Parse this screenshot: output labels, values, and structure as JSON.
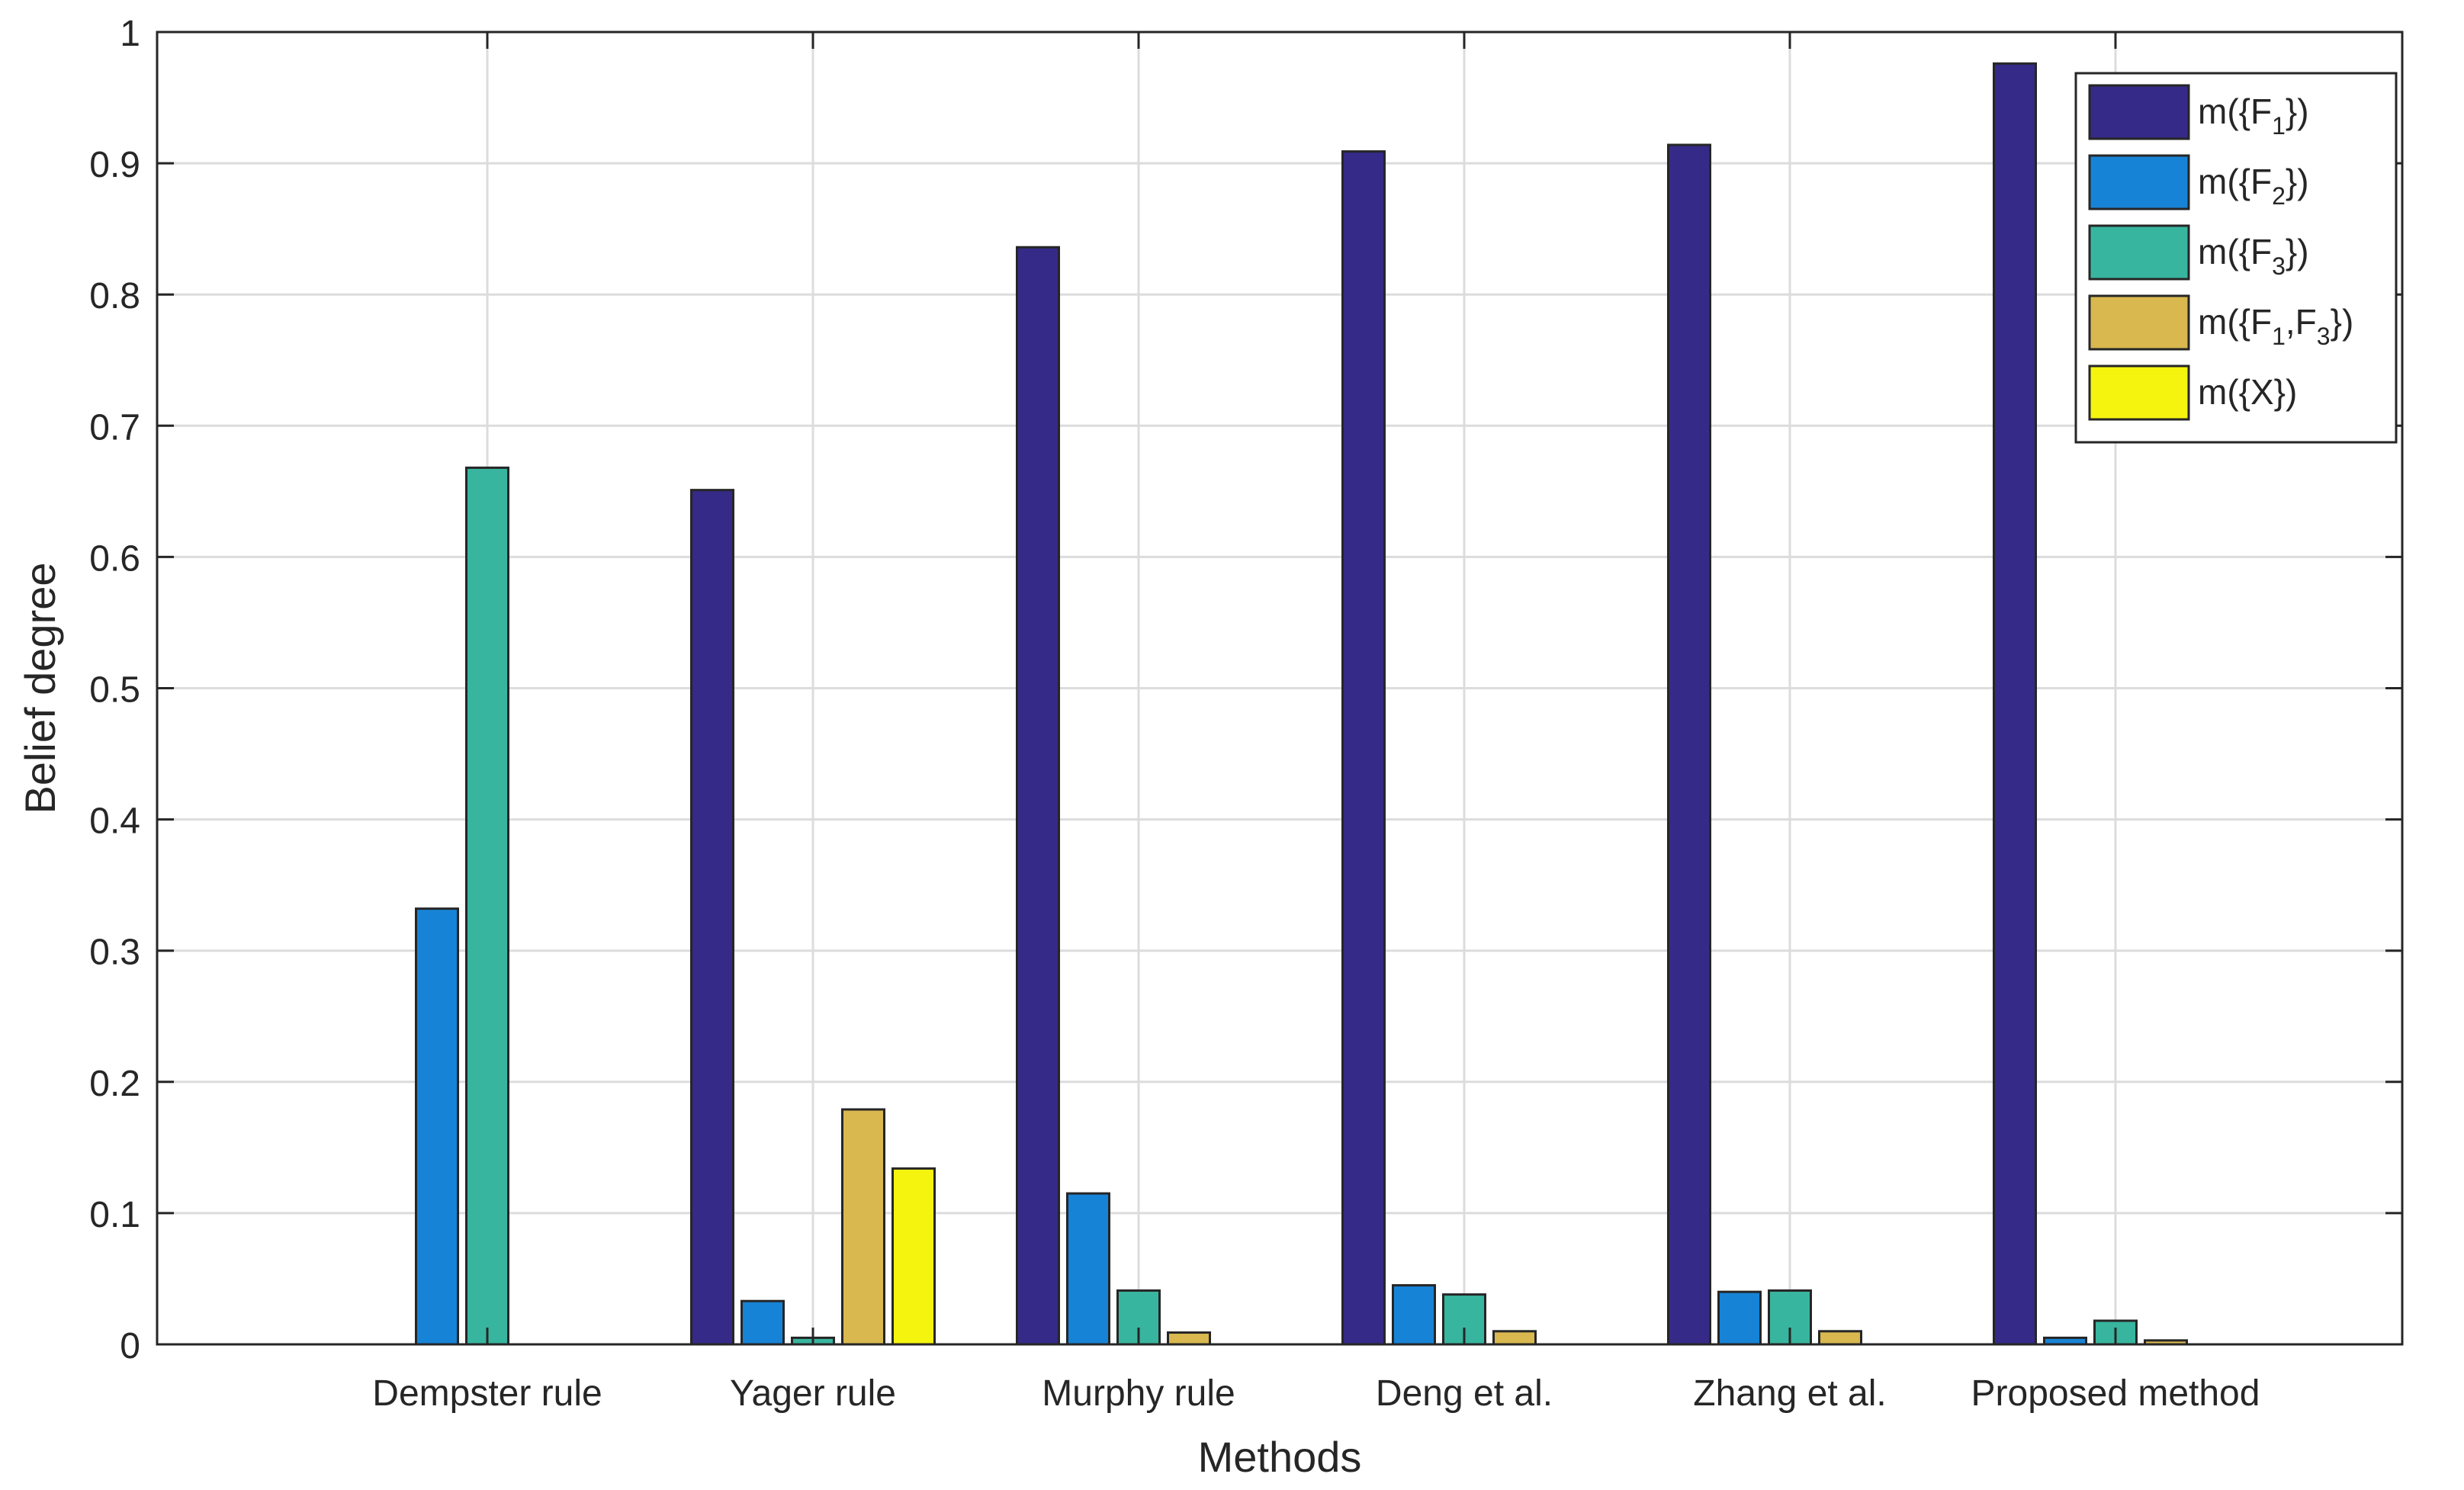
{
  "chart_data": {
    "type": "bar",
    "xlabel": "Methods",
    "ylabel": "Belief degree",
    "ylim": [
      0,
      1
    ],
    "yticks": [
      "0",
      "0.1",
      "0.2",
      "0.3",
      "0.4",
      "0.5",
      "0.6",
      "0.7",
      "0.8",
      "0.9",
      "1"
    ],
    "categories": [
      "Dempster rule",
      "Yager rule",
      "Murphy rule",
      "Deng et al.",
      "Zhang et al.",
      "Proposed method"
    ],
    "grid": true,
    "legend_position": "top-right",
    "series": [
      {
        "name": "m({F1})",
        "label_base": "m({F",
        "label_sub": "1",
        "label_end": "})",
        "color": "#352a87",
        "values": [
          0,
          0.651,
          0.836,
          0.909,
          0.914,
          0.976
        ]
      },
      {
        "name": "m({F2})",
        "label_base": "m({F",
        "label_sub": "2",
        "label_end": "})",
        "color": "#1783d6",
        "values": [
          0.332,
          0.033,
          0.115,
          0.045,
          0.04,
          0.005
        ]
      },
      {
        "name": "m({F3})",
        "label_base": "m({F",
        "label_sub": "3",
        "label_end": "})",
        "color": "#38b59e",
        "values": [
          0.668,
          0.005,
          0.041,
          0.038,
          0.041,
          0.018
        ]
      },
      {
        "name": "m({F1,F3})",
        "label_base": "m({F",
        "label_sub": "1",
        "label_mid": ",F",
        "label_sub2": "3",
        "label_end": "})",
        "color": "#d8b84f",
        "values": [
          0,
          0.179,
          0.009,
          0.01,
          0.01,
          0.003
        ]
      },
      {
        "name": "m({X})",
        "label_base": "m({X})",
        "color": "#f5f40f",
        "values": [
          0,
          0.134,
          0,
          0,
          0,
          0
        ]
      }
    ]
  }
}
